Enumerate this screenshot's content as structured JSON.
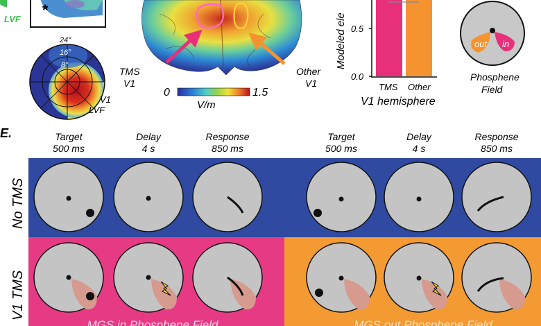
{
  "top_left": {
    "inset_label": "LVF",
    "marker": "*",
    "polar_ticks": [
      "24°",
      "16°",
      "8°"
    ],
    "polar_caption": [
      "V1",
      "LVF"
    ]
  },
  "brain": {
    "label_tms": [
      "TMS",
      "V1"
    ],
    "label_other": [
      "Other",
      "V1"
    ],
    "colorbar_min": "0",
    "colorbar_max": "1.5",
    "colorbar_unit": "V/m"
  },
  "bar_chart": {
    "ylabel": "Modeled ele",
    "yticks": [
      "0.5",
      "0.0"
    ],
    "categories": [
      "TMS",
      "Other"
    ],
    "xlabel": "V1 hemisphere",
    "colors": [
      "#e8307a",
      "#f59331"
    ]
  },
  "phosphene": {
    "label_out": "out",
    "label_in": "in",
    "caption": [
      "Phosphene",
      "Field"
    ]
  },
  "panel_e": {
    "panel_label": "E.",
    "stages": [
      {
        "name": "Target",
        "duration": "500 ms"
      },
      {
        "name": "Delay",
        "duration": "4 s"
      },
      {
        "name": "Response",
        "duration": "850 ms"
      },
      {
        "name": "Target",
        "duration": "500 ms"
      },
      {
        "name": "Delay",
        "duration": "4 s"
      },
      {
        "name": "Response",
        "duration": "850 ms"
      }
    ],
    "row_no_tms": "No TMS",
    "row_v1_tms": "V1 TMS",
    "condition_in": "MGS in Phosphene Field",
    "condition_out": "MGS out Phosphene Field",
    "colors": {
      "no_tms": "#2f4aa0",
      "in": "#e63a85",
      "out": "#f39a33",
      "field": "#d69a8e"
    }
  }
}
